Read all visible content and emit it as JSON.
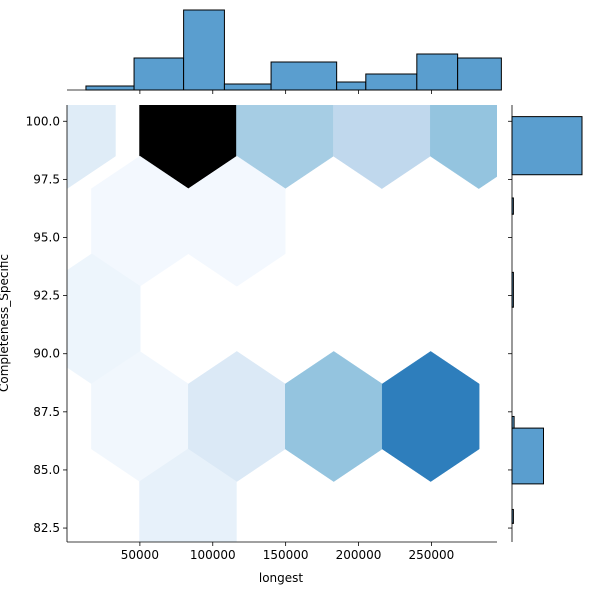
{
  "chart_data": {
    "type": "hexbin-jointplot",
    "xlabel": "longest",
    "ylabel": "Completeness_Specific",
    "xlim": [
      0,
      295000
    ],
    "ylim": [
      81.9,
      100.7
    ],
    "x_ticks": [
      50000,
      100000,
      150000,
      200000,
      250000
    ],
    "x_tick_labels": [
      "50000",
      "100000",
      "150000",
      "200000",
      "250000"
    ],
    "y_ticks": [
      82.5,
      85.0,
      87.5,
      90.0,
      92.5,
      95.0,
      97.5,
      100.0
    ],
    "y_tick_labels": [
      "82.5",
      "85.0",
      "87.5",
      "90.0",
      "92.5",
      "95.0",
      "97.5",
      "100.0"
    ],
    "hexbin": {
      "cmap": "Blues",
      "hex_width_x": 66500,
      "hex_circumradius_y": 2.8,
      "cells": [
        {
          "x": 0,
          "y": 99.9,
          "value": 0.12
        },
        {
          "x": 83000,
          "y": 99.9,
          "value": 1.0
        },
        {
          "x": 149500,
          "y": 99.9,
          "value": 0.35
        },
        {
          "x": 216000,
          "y": 99.9,
          "value": 0.27
        },
        {
          "x": 282500,
          "y": 99.9,
          "value": 0.4
        },
        {
          "x": 50000,
          "y": 95.7,
          "value": 0.02
        },
        {
          "x": 116500,
          "y": 95.7,
          "value": 0.02
        },
        {
          "x": 17000,
          "y": 91.5,
          "value": 0.05
        },
        {
          "x": 50000,
          "y": 87.3,
          "value": 0.03
        },
        {
          "x": 116500,
          "y": 87.3,
          "value": 0.14
        },
        {
          "x": 183000,
          "y": 87.3,
          "value": 0.4
        },
        {
          "x": 249500,
          "y": 87.3,
          "value": 0.7
        },
        {
          "x": 83000,
          "y": 83.1,
          "value": 0.08
        }
      ]
    },
    "marginal_x": {
      "bin_edges": [
        13000,
        46000,
        80000,
        108000,
        140000,
        185000,
        205000,
        240000,
        268000,
        298000
      ],
      "counts": [
        1,
        8,
        20,
        1.5,
        7,
        2,
        4,
        9,
        8
      ],
      "color": "#5a9ecf"
    },
    "marginal_y": {
      "bins": [
        {
          "from": 97.7,
          "to": 100.2,
          "count": 100
        },
        {
          "from": 84.4,
          "to": 86.8,
          "count": 45
        },
        {
          "from": 86.8,
          "to": 87.3,
          "count": 3
        },
        {
          "from": 96.0,
          "to": 96.7,
          "count": 2
        },
        {
          "from": 92.0,
          "to": 93.5,
          "count": 2
        },
        {
          "from": 82.7,
          "to": 83.3,
          "count": 2
        }
      ],
      "color": "#5a9ecf"
    }
  }
}
